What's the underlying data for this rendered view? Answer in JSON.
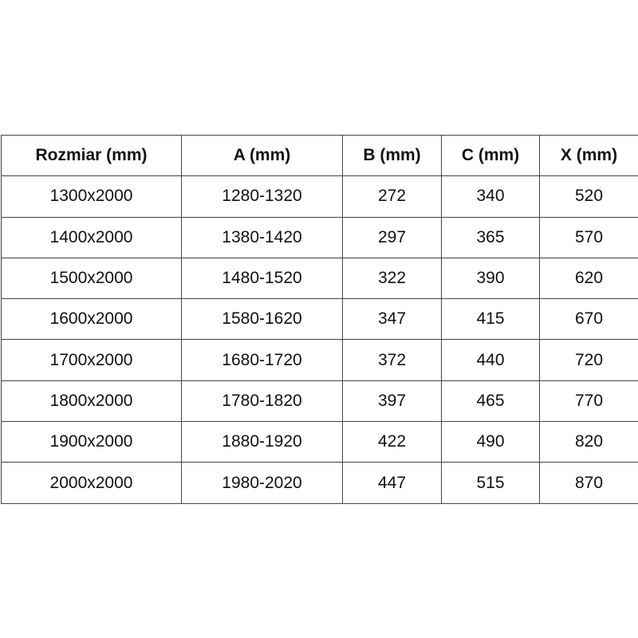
{
  "table": {
    "headers": [
      "Rozmiar (mm)",
      "A (mm)",
      "B (mm)",
      "C (mm)",
      "X (mm)"
    ],
    "rows": [
      [
        "1300x2000",
        "1280-1320",
        "272",
        "340",
        "520"
      ],
      [
        "1400x2000",
        "1380-1420",
        "297",
        "365",
        "570"
      ],
      [
        "1500x2000",
        "1480-1520",
        "322",
        "390",
        "620"
      ],
      [
        "1600x2000",
        "1580-1620",
        "347",
        "415",
        "670"
      ],
      [
        "1700x2000",
        "1680-1720",
        "372",
        "440",
        "720"
      ],
      [
        "1800x2000",
        "1780-1820",
        "397",
        "465",
        "770"
      ],
      [
        "1900x2000",
        "1880-1920",
        "422",
        "490",
        "820"
      ],
      [
        "2000x2000",
        "1980-2020",
        "447",
        "515",
        "870"
      ]
    ]
  }
}
